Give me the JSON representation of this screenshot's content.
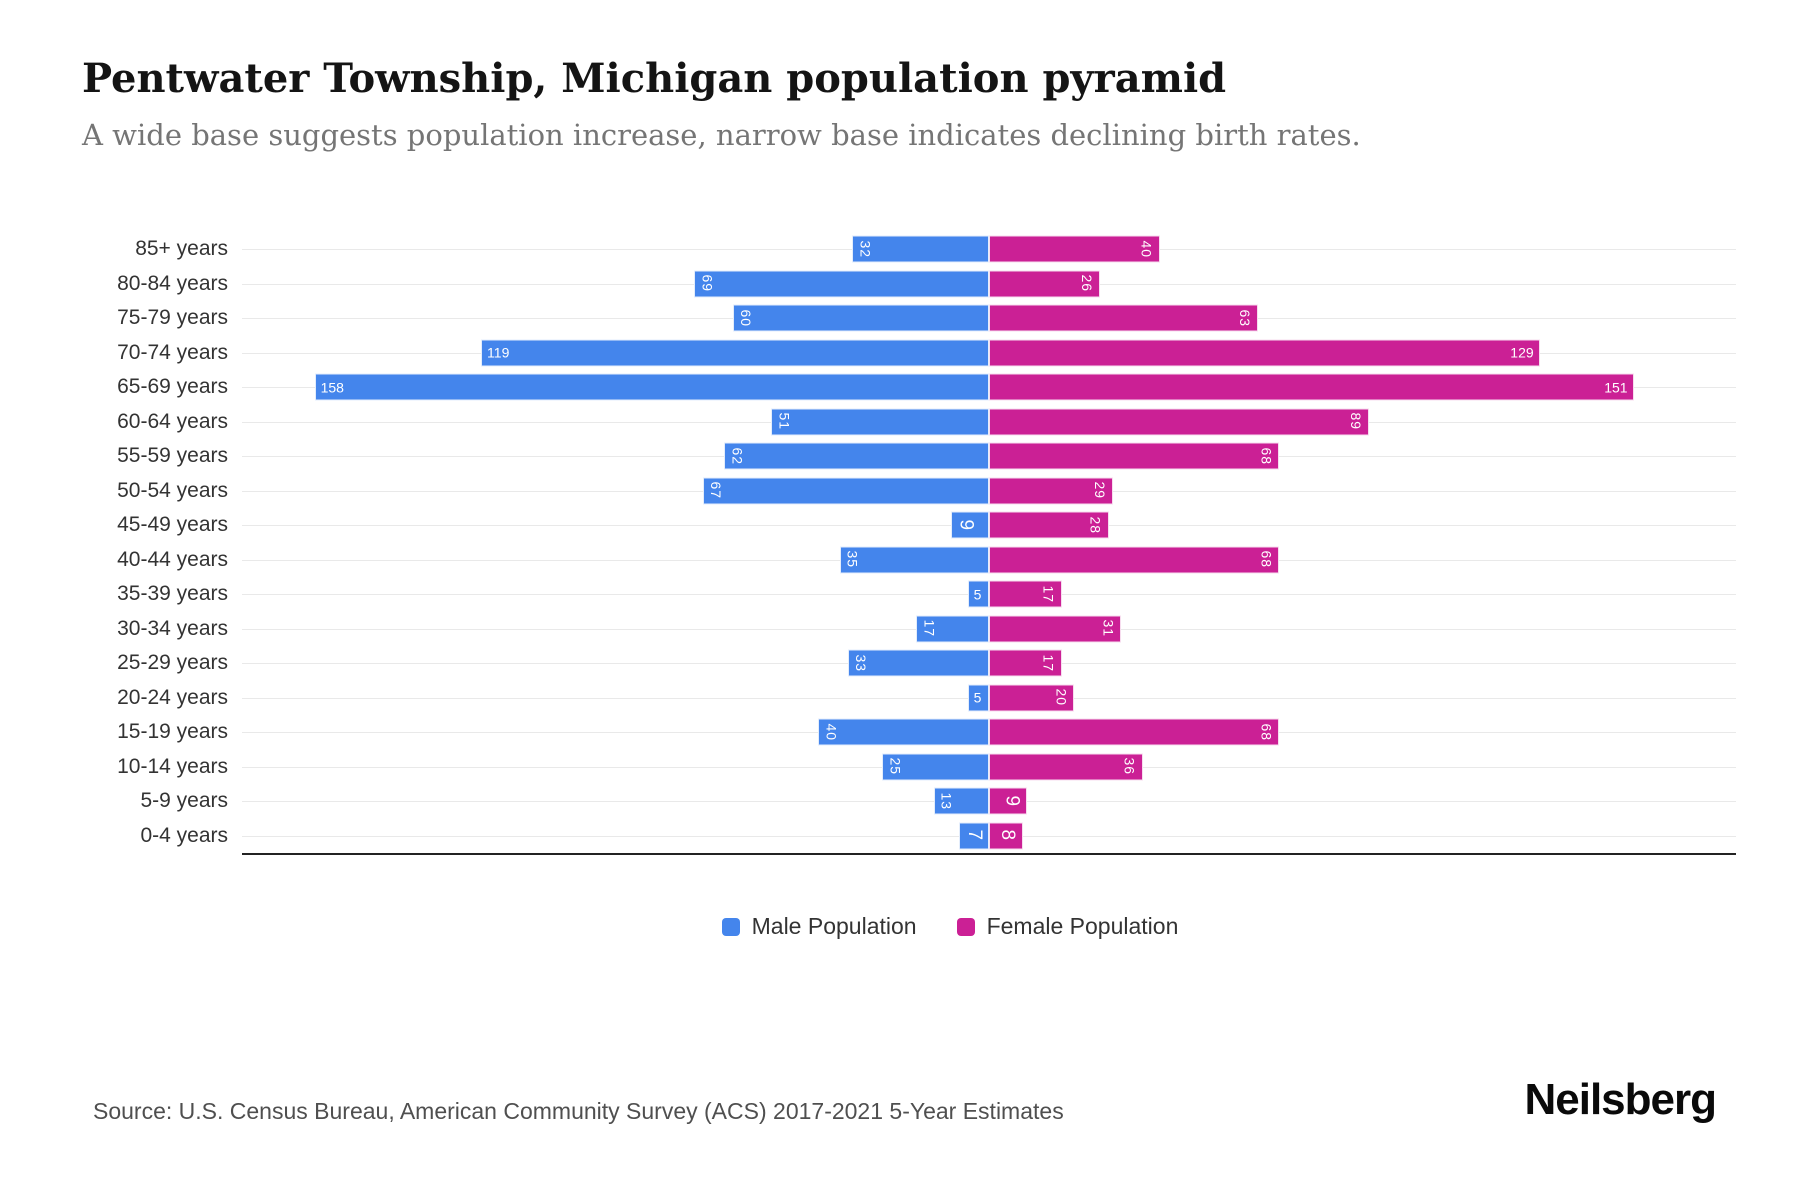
{
  "source": "Source: U.S. Census Bureau, American Community Survey (ACS) 2017-2021 5-Year Estimates",
  "brand": "Neilsberg",
  "colors": {
    "male": "#4485ec",
    "female": "#cb2095",
    "gridline": "#e9e9e9",
    "axis_line": "#232323",
    "title": "#141414",
    "subtitle": "#757575",
    "category_label": "#333333",
    "bar_label": "#ffffff"
  },
  "chart_data": {
    "type": "bar",
    "subtype": "population-pyramid",
    "title": "Pentwater Township, Michigan population pyramid",
    "subtitle": "A wide base suggests population increase, narrow base indicates declining birth rates.",
    "categories": [
      "85+ years",
      "80-84 years",
      "75-79 years",
      "70-74 years",
      "65-69 years",
      "60-64 years",
      "55-59 years",
      "50-54 years",
      "45-49 years",
      "40-44 years",
      "35-39 years",
      "30-34 years",
      "25-29 years",
      "20-24 years",
      "15-19 years",
      "10-14 years",
      "5-9 years",
      "0-4 years"
    ],
    "series": [
      {
        "name": "Male Population",
        "side": "left",
        "color": "#4485ec",
        "values": [
          32,
          69,
          60,
          119,
          158,
          51,
          62,
          67,
          9,
          35,
          5,
          17,
          33,
          5,
          40,
          25,
          13,
          7
        ]
      },
      {
        "name": "Female Population",
        "side": "right",
        "color": "#cb2095",
        "values": [
          40,
          26,
          63,
          129,
          151,
          89,
          68,
          29,
          28,
          68,
          17,
          31,
          17,
          20,
          68,
          36,
          9,
          8
        ]
      }
    ],
    "x_axis": {
      "min": 0,
      "max_each_side": 175,
      "tick_labels_visible": false
    },
    "grid": "horizontal gridline at each category row",
    "legend_position": "bottom-center",
    "bar_labels": "value at outer end of each bar, white; rotated 90deg except 3-digit values and 5s"
  }
}
